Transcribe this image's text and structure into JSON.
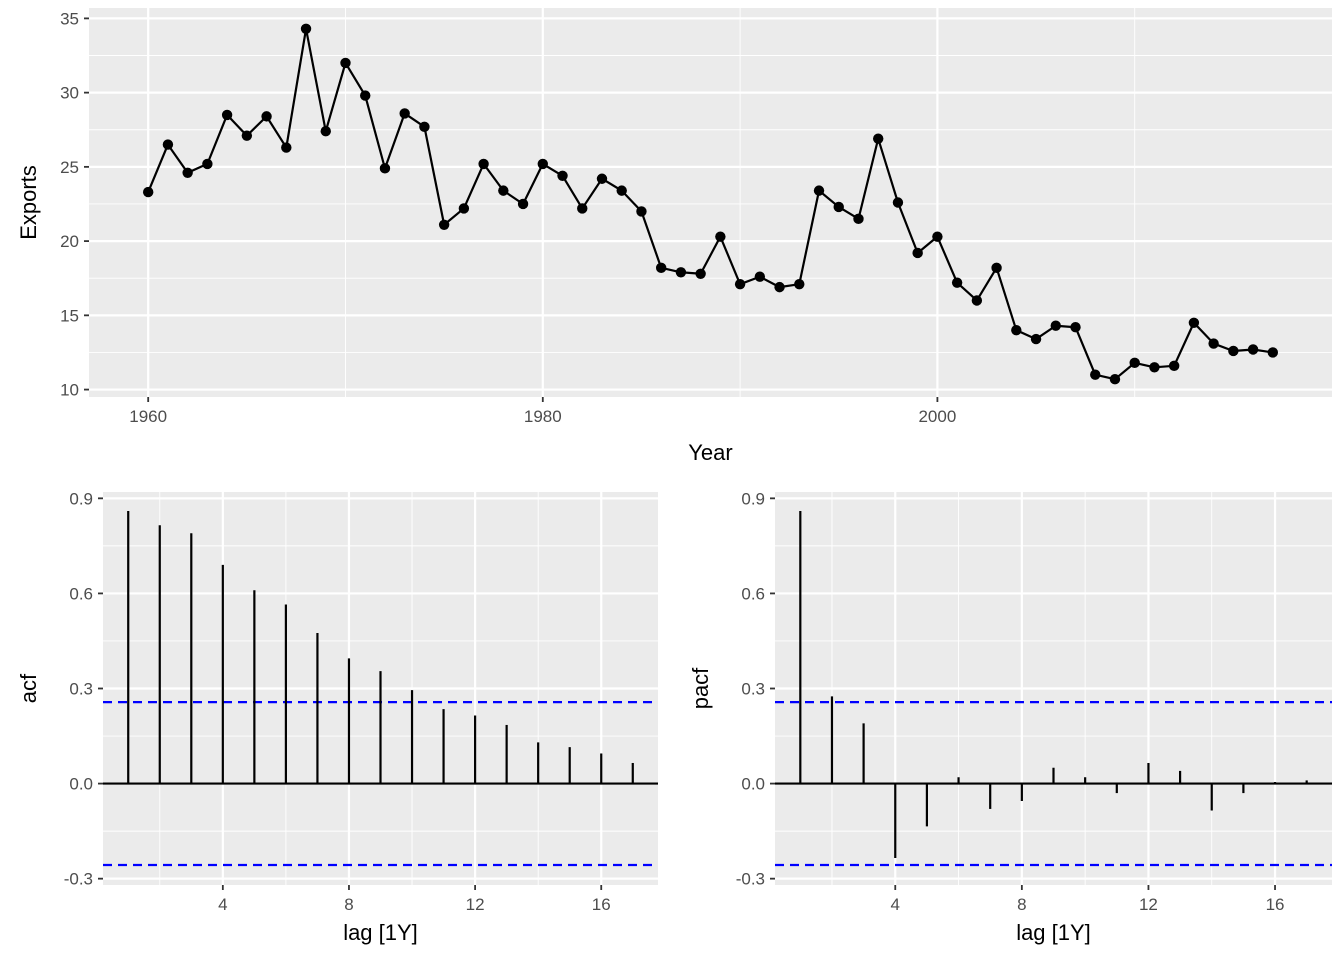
{
  "chart_data": [
    {
      "type": "line",
      "xlabel": "Year",
      "ylabel": "Exports",
      "xlim": [
        1957,
        2020
      ],
      "ylim": [
        9.5,
        35.7
      ],
      "x_ticks": [
        1960,
        1980,
        2000
      ],
      "y_ticks": [
        10,
        15,
        20,
        25,
        30,
        35
      ],
      "grid": true,
      "legend": "none",
      "line_color": "#000000",
      "x": [
        1960,
        1961,
        1962,
        1963,
        1964,
        1965,
        1966,
        1967,
        1968,
        1969,
        1970,
        1971,
        1972,
        1973,
        1974,
        1975,
        1976,
        1977,
        1978,
        1979,
        1980,
        1981,
        1982,
        1983,
        1984,
        1985,
        1986,
        1987,
        1988,
        1989,
        1990,
        1991,
        1992,
        1993,
        1994,
        1995,
        1996,
        1997,
        1998,
        1999,
        2000,
        2001,
        2002,
        2003,
        2004,
        2005,
        2006,
        2007,
        2008,
        2009,
        2010,
        2011,
        2012,
        2013,
        2014,
        2015,
        2016,
        2017
      ],
      "y": [
        23.3,
        26.5,
        24.6,
        25.2,
        28.5,
        27.1,
        28.4,
        26.3,
        34.3,
        27.4,
        32.0,
        29.8,
        24.9,
        28.6,
        27.7,
        21.1,
        22.2,
        25.2,
        23.4,
        22.5,
        25.2,
        24.4,
        22.2,
        24.2,
        23.4,
        22.0,
        18.2,
        17.9,
        17.8,
        20.3,
        17.1,
        17.6,
        16.9,
        17.1,
        23.4,
        22.3,
        21.5,
        26.9,
        22.6,
        19.2,
        20.3,
        17.2,
        16.0,
        18.2,
        14.0,
        13.4,
        14.3,
        14.2,
        11.0,
        10.7,
        11.8,
        11.5,
        11.6,
        14.5,
        13.1,
        12.6,
        12.7,
        12.5
      ]
    },
    {
      "type": "bar",
      "xlabel": "lag [1Y]",
      "ylabel": "acf",
      "xlim": [
        0.2,
        17.8
      ],
      "ylim": [
        -0.32,
        0.92
      ],
      "x_ticks": [
        4,
        8,
        12,
        16
      ],
      "y_ticks": [
        -0.3,
        0.0,
        0.3,
        0.6,
        0.9
      ],
      "y_tick_labels": [
        "-0.3",
        "0.0",
        "0.3",
        "0.6",
        "0.9"
      ],
      "grid": true,
      "legend": "none",
      "confidence_bound": 0.257,
      "bound_color": "#0000ff",
      "x": [
        1,
        2,
        3,
        4,
        5,
        6,
        7,
        8,
        9,
        10,
        11,
        12,
        13,
        14,
        15,
        16,
        17
      ],
      "values": [
        0.86,
        0.815,
        0.79,
        0.69,
        0.61,
        0.565,
        0.475,
        0.395,
        0.355,
        0.295,
        0.235,
        0.215,
        0.185,
        0.13,
        0.115,
        0.095,
        0.065
      ]
    },
    {
      "type": "bar",
      "xlabel": "lag [1Y]",
      "ylabel": "pacf",
      "xlim": [
        0.2,
        17.8
      ],
      "ylim": [
        -0.32,
        0.92
      ],
      "x_ticks": [
        4,
        8,
        12,
        16
      ],
      "y_ticks": [
        -0.3,
        0.0,
        0.3,
        0.6,
        0.9
      ],
      "y_tick_labels": [
        "-0.3",
        "0.0",
        "0.3",
        "0.6",
        "0.9"
      ],
      "grid": true,
      "legend": "none",
      "confidence_bound": 0.257,
      "bound_color": "#0000ff",
      "x": [
        1,
        2,
        3,
        4,
        5,
        6,
        7,
        8,
        9,
        10,
        11,
        12,
        13,
        14,
        15,
        16,
        17
      ],
      "values": [
        0.86,
        0.275,
        0.19,
        -0.235,
        -0.135,
        0.02,
        -0.08,
        -0.055,
        0.05,
        0.02,
        -0.03,
        0.065,
        0.04,
        -0.085,
        -0.03,
        0.005,
        0.01
      ]
    }
  ]
}
